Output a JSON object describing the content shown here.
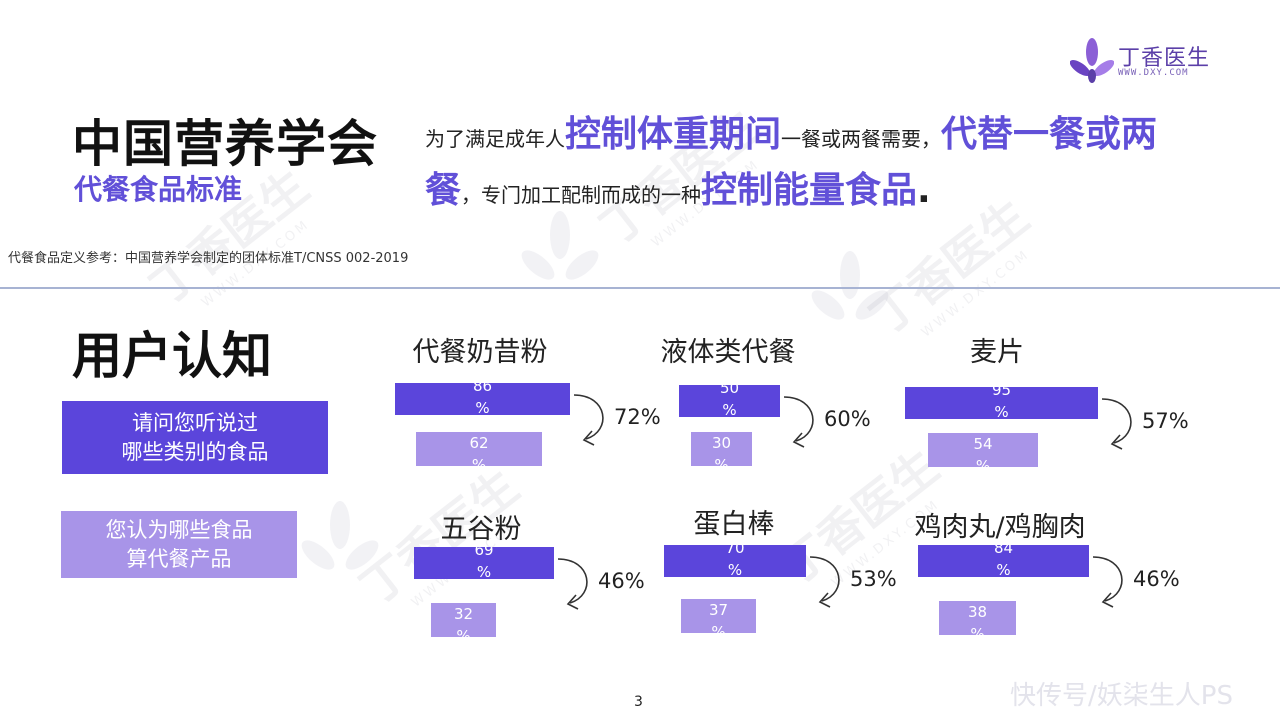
{
  "brand": {
    "name": "丁香医生",
    "url": "WWW.DXY.COM"
  },
  "header": {
    "org_title": "中国营养学会",
    "subtitle": "代餐食品标准",
    "definition": {
      "p1": "为了满足成年人",
      "h1": "控制体重期间",
      "p2": "一餐或两餐需要，",
      "h2": "代替一餐或两餐",
      "p3": "，专门加工配制而成的一种",
      "h3": "控制能量食品",
      "p4": "."
    },
    "reference_note": "代餐食品定义参考：中国营养学会制定的团体标准T/CNSS 002-2019"
  },
  "section": {
    "title": "用户认知",
    "legend": {
      "heard_line1": "请问您听说过",
      "heard_line2": "哪些类别的食品",
      "mealrep_line1": "您认为哪些食品",
      "mealrep_line2": "算代餐产品"
    }
  },
  "chart_data": {
    "type": "bar",
    "series": [
      {
        "name": "请问您听说过哪些类别的食品",
        "color": "#5b45db"
      },
      {
        "name": "您认为哪些食品算代餐产品",
        "color": "#a894e8"
      }
    ],
    "categories": [
      {
        "name": "代餐奶昔粉",
        "heard": 86,
        "heard_label": "86",
        "mealrep": 62,
        "mealrep_label": "62",
        "ratio": "72%"
      },
      {
        "name": "液体类代餐",
        "heard": 50,
        "heard_label": "50",
        "mealrep": 30,
        "mealrep_label": "30",
        "ratio": "60%"
      },
      {
        "name": "麦片",
        "heard": 95,
        "heard_label": "95",
        "mealrep": 54,
        "mealrep_label": "54",
        "ratio": "57%"
      },
      {
        "name": "五谷粉",
        "heard": 69,
        "heard_label": "69",
        "mealrep": 32,
        "mealrep_label": "32",
        "ratio": "46%"
      },
      {
        "name": "蛋白棒",
        "heard": 70,
        "heard_label": "70",
        "mealrep": 37,
        "mealrep_label": "37",
        "ratio": "53%"
      },
      {
        "name": "鸡肉丸/鸡胸肉",
        "heard": 84,
        "heard_label": "84",
        "mealrep": 38,
        "mealrep_label": "38",
        "ratio": "46%"
      }
    ],
    "unit": "%"
  },
  "footer": {
    "page_number": "3",
    "corner_text": "快传号/妖柒生人PS"
  }
}
